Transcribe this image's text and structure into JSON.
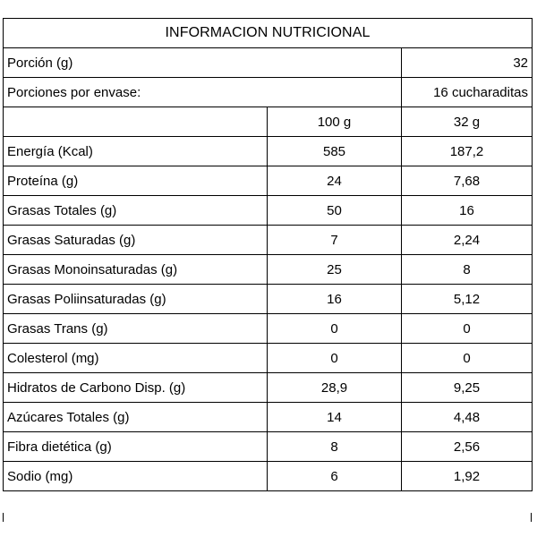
{
  "title": "INFORMACION NUTRICIONAL",
  "portion": {
    "label": "Porción (g)",
    "value": "32"
  },
  "portions_per_package": {
    "label": "Porciones por envase:",
    "value": "16 cucharaditas"
  },
  "columns": [
    "100 g",
    "32 g"
  ],
  "rows": [
    {
      "label": "Energía (Kcal)",
      "per100": "585",
      "perPortion": "187,2"
    },
    {
      "label": "Proteína (g)",
      "per100": "24",
      "perPortion": "7,68"
    },
    {
      "label": "Grasas Totales (g)",
      "per100": "50",
      "perPortion": "16"
    },
    {
      "label": "Grasas Saturadas (g)",
      "per100": "7",
      "perPortion": "2,24"
    },
    {
      "label": "Grasas Monoinsaturadas (g)",
      "per100": "25",
      "perPortion": "8"
    },
    {
      "label": "Grasas Poliinsaturadas (g)",
      "per100": "16",
      "perPortion": "5,12"
    },
    {
      "label": "Grasas Trans (g)",
      "per100": "0",
      "perPortion": "0"
    },
    {
      "label": "Colesterol (mg)",
      "per100": "0",
      "perPortion": "0"
    },
    {
      "label": "Hidratos de Carbono Disp. (g)",
      "per100": "28,9",
      "perPortion": "9,25"
    },
    {
      "label": "Azúcares Totales (g)",
      "per100": "14",
      "perPortion": "4,48"
    },
    {
      "label": "Fibra dietética (g)",
      "per100": "8",
      "perPortion": "2,56"
    },
    {
      "label": "Sodio (mg)",
      "per100": "6",
      "perPortion": "1,92"
    }
  ]
}
